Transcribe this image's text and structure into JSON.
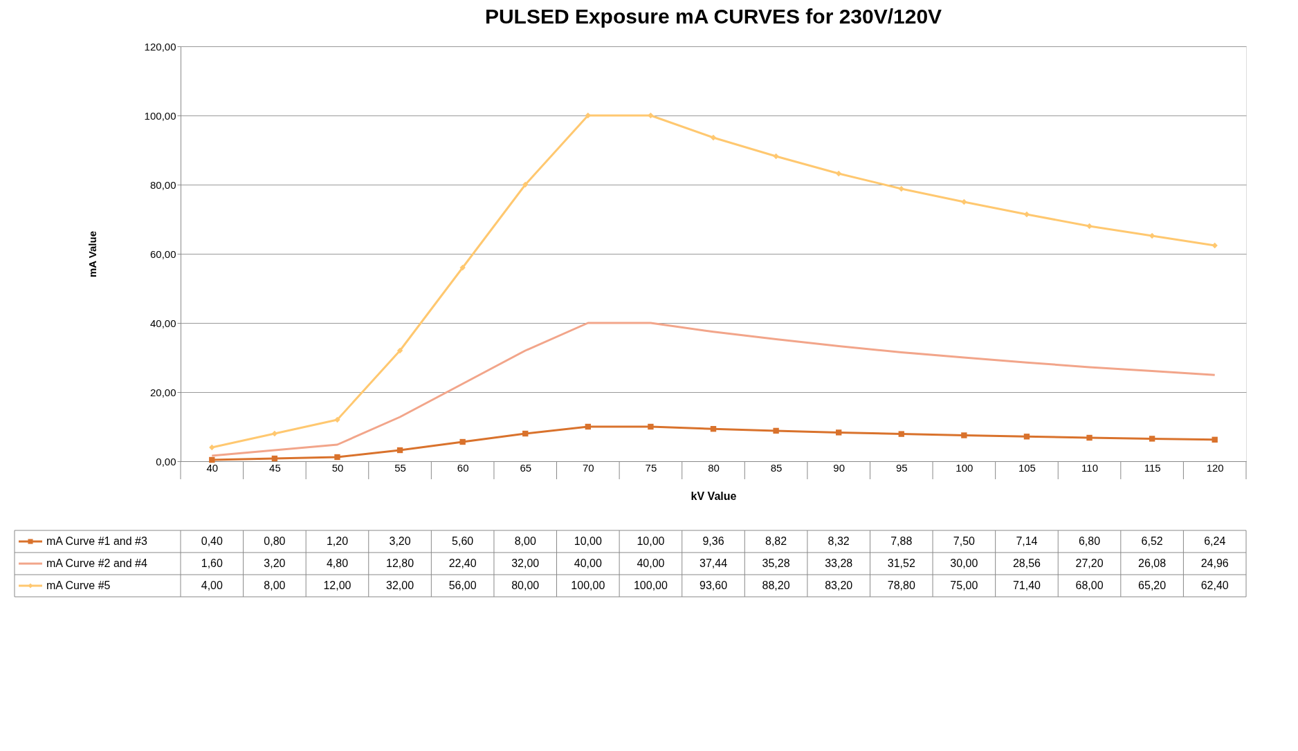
{
  "chart_data": {
    "type": "line",
    "title": "PULSED Exposure mA CURVES for 230V/120V",
    "xlabel": "kV Value",
    "ylabel": "mA Value",
    "categories": [
      "40",
      "45",
      "50",
      "55",
      "60",
      "65",
      "70",
      "75",
      "80",
      "85",
      "90",
      "95",
      "100",
      "105",
      "110",
      "115",
      "120"
    ],
    "ylim": [
      0,
      120
    ],
    "yticks": [
      {
        "value": 0,
        "label": "0,00"
      },
      {
        "value": 20,
        "label": "20,00"
      },
      {
        "value": 40,
        "label": "40,00"
      },
      {
        "value": 60,
        "label": "60,00"
      },
      {
        "value": 80,
        "label": "80,00"
      },
      {
        "value": 100,
        "label": "100,00"
      },
      {
        "value": 120,
        "label": "120,00"
      }
    ],
    "grid": "y",
    "legend": "bottom",
    "series": [
      {
        "name": "mA Curve #1 and #3",
        "color": "#d9722c",
        "marker": "square",
        "values": [
          0.4,
          0.8,
          1.2,
          3.2,
          5.6,
          8.0,
          10.0,
          10.0,
          9.36,
          8.82,
          8.32,
          7.88,
          7.5,
          7.14,
          6.8,
          6.52,
          6.24
        ],
        "value_labels": [
          "0,40",
          "0,80",
          "1,20",
          "3,20",
          "5,60",
          "8,00",
          "10,00",
          "10,00",
          "9,36",
          "8,82",
          "8,32",
          "7,88",
          "7,50",
          "7,14",
          "6,80",
          "6,52",
          "6,24"
        ]
      },
      {
        "name": "mA Curve #2 and #4",
        "color": "#f2a58a",
        "marker": "none",
        "values": [
          1.6,
          3.2,
          4.8,
          12.8,
          22.4,
          32.0,
          40.0,
          40.0,
          37.44,
          35.28,
          33.28,
          31.52,
          30.0,
          28.56,
          27.2,
          26.08,
          24.96
        ],
        "value_labels": [
          "1,60",
          "3,20",
          "4,80",
          "12,80",
          "22,40",
          "32,00",
          "40,00",
          "40,00",
          "37,44",
          "35,28",
          "33,28",
          "31,52",
          "30,00",
          "28,56",
          "27,20",
          "26,08",
          "24,96"
        ]
      },
      {
        "name": "mA Curve #5",
        "color": "#ffc870",
        "marker": "diamond",
        "values": [
          4.0,
          8.0,
          12.0,
          32.0,
          56.0,
          80.0,
          100.0,
          100.0,
          93.6,
          88.2,
          83.2,
          78.8,
          75.0,
          71.4,
          68.0,
          65.2,
          62.4
        ],
        "value_labels": [
          "4,00",
          "8,00",
          "12,00",
          "32,00",
          "56,00",
          "80,00",
          "100,00",
          "100,00",
          "93,60",
          "88,20",
          "83,20",
          "78,80",
          "75,00",
          "71,40",
          "68,00",
          "65,20",
          "62,40"
        ]
      }
    ]
  }
}
